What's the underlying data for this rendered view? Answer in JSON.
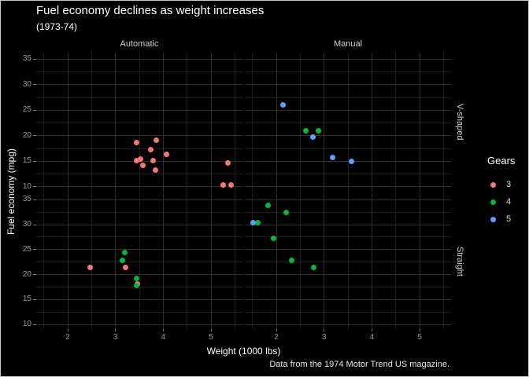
{
  "chart_data": {
    "type": "scatter",
    "title": "Fuel economy declines as weight increases",
    "subtitle": "(1973-74)",
    "caption": "Data from the 1974 Motor Trend US magazine.",
    "xlabel": "Weight (1000 lbs)",
    "ylabel": "Fuel economy (mpg)",
    "xlim": [
      1.341,
      5.657
    ],
    "ylim": [
      9.07,
      36.3
    ],
    "x_ticks": [
      2,
      3,
      4,
      5
    ],
    "y_ticks": [
      35,
      30,
      25,
      20,
      15,
      10
    ],
    "x_minor": [
      1.5,
      2.5,
      3.5,
      4.5,
      5.5
    ],
    "y_minor": [
      12.5,
      17.5,
      22.5,
      27.5,
      32.5
    ],
    "grid": true,
    "theme": {
      "background": "#000000",
      "grid_major": "#2e2e2e",
      "grid_minor": "#1d1d1d"
    },
    "legend": {
      "title": "Gears",
      "position": "right",
      "entries": [
        {
          "label": "3",
          "color": "#F8766D"
        },
        {
          "label": "4",
          "color": "#00BA38"
        },
        {
          "label": "5",
          "color": "#619CFF"
        }
      ]
    },
    "facets": {
      "col_labels": [
        "Automatic",
        "Manual"
      ],
      "row_labels": [
        "V-shaped",
        "Straight"
      ],
      "cells": [
        {
          "col": 0,
          "row": 0,
          "col_label": "Automatic",
          "row_label": "V-shaped",
          "points": [
            [
              3.44,
              18.7,
              3
            ],
            [
              3.57,
              14.3,
              3
            ],
            [
              4.07,
              16.4,
              3
            ],
            [
              3.73,
              17.3,
              3
            ],
            [
              3.78,
              15.2,
              3
            ],
            [
              5.25,
              10.4,
              3
            ],
            [
              5.424,
              10.4,
              3
            ],
            [
              5.345,
              14.7,
              3
            ],
            [
              3.52,
              15.5,
              3
            ],
            [
              3.435,
              15.2,
              3
            ],
            [
              3.84,
              13.3,
              3
            ],
            [
              3.845,
              19.2,
              3
            ]
          ]
        },
        {
          "col": 1,
          "row": 0,
          "col_label": "Manual",
          "row_label": "V-shaped",
          "points": [
            [
              2.62,
              21.0,
              4
            ],
            [
              2.875,
              21.0,
              4
            ],
            [
              2.14,
              26.0,
              5
            ],
            [
              3.17,
              15.8,
              5
            ],
            [
              2.77,
              19.7,
              5
            ],
            [
              3.57,
              15.0,
              5
            ]
          ]
        },
        {
          "col": 0,
          "row": 1,
          "col_label": "Automatic",
          "row_label": "Straight",
          "points": [
            [
              3.215,
              21.4,
              3
            ],
            [
              3.46,
              18.1,
              3
            ],
            [
              3.19,
              24.4,
              4
            ],
            [
              3.15,
              22.8,
              4
            ],
            [
              3.44,
              19.2,
              4
            ],
            [
              3.44,
              17.8,
              4
            ],
            [
              2.465,
              21.5,
              3
            ]
          ]
        },
        {
          "col": 1,
          "row": 1,
          "col_label": "Manual",
          "row_label": "Straight",
          "points": [
            [
              2.32,
              22.8,
              4
            ],
            [
              2.2,
              32.4,
              4
            ],
            [
              1.615,
              30.4,
              4
            ],
            [
              1.835,
              33.9,
              4
            ],
            [
              1.935,
              27.3,
              4
            ],
            [
              1.513,
              30.4,
              5
            ],
            [
              2.78,
              21.4,
              4
            ]
          ]
        }
      ]
    }
  }
}
